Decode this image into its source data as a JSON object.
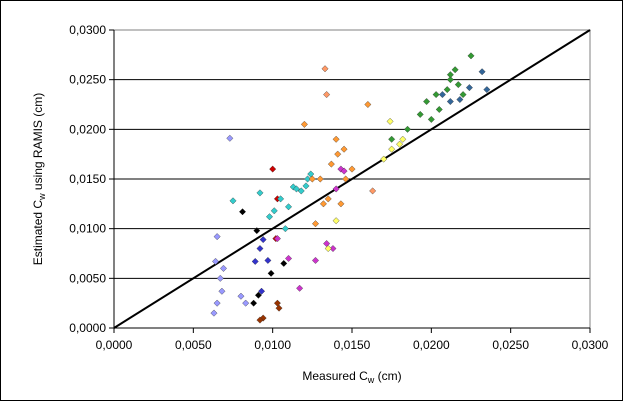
{
  "chart_data": {
    "type": "scatter",
    "title": "",
    "xlabel": {
      "main": "Measured C",
      "sub": "w",
      "unit": " (cm)"
    },
    "ylabel": {
      "main": "Estimated C",
      "sub": "w",
      "suffix": " using RAMIS (cm)"
    },
    "xlim": [
      0,
      0.03
    ],
    "ylim": [
      0,
      0.03
    ],
    "xticks": [
      "0,0000",
      "0,0050",
      "0,0100",
      "0,0150",
      "0,0200",
      "0,0250",
      "0,0300"
    ],
    "yticks": [
      "0,0000",
      "0,0050",
      "0,0100",
      "0,0150",
      "0,0200",
      "0,0250",
      "0,0300"
    ],
    "grid": "horizontal",
    "marker": "diamond",
    "reference_line": {
      "x": [
        0,
        0.03
      ],
      "y": [
        0,
        0.03
      ],
      "color": "#000000"
    },
    "series": [
      {
        "color": "#3333cc",
        "x": [
          0.0089,
          0.0092,
          0.0094,
          0.0097,
          0.0093
        ],
        "y": [
          0.0067,
          0.008,
          0.0089,
          0.0068,
          0.0037
        ]
      },
      {
        "color": "#000000",
        "x": [
          0.009,
          0.0099,
          0.0091,
          0.0088,
          0.0107,
          0.0081
        ],
        "y": [
          0.0098,
          0.0055,
          0.0033,
          0.0025,
          0.0065,
          0.0117
        ]
      },
      {
        "color": "#993300",
        "x": [
          0.0094,
          0.0092,
          0.0103,
          0.0104
        ],
        "y": [
          0.001,
          0.0008,
          0.0025,
          0.002
        ]
      },
      {
        "color": "#cc0000",
        "x": [
          0.01,
          0.0102,
          0.0103
        ],
        "y": [
          0.016,
          0.009,
          0.013
        ]
      },
      {
        "color": "#33cccc",
        "x": [
          0.0075,
          0.0092,
          0.0098,
          0.0101,
          0.0105,
          0.011,
          0.0113,
          0.0118,
          0.0121,
          0.0122,
          0.0124,
          0.0115,
          0.0108
        ],
        "y": [
          0.0128,
          0.0136,
          0.0112,
          0.0118,
          0.013,
          0.0122,
          0.0142,
          0.0138,
          0.0143,
          0.015,
          0.0155,
          0.014,
          0.01
        ]
      },
      {
        "color": "#9999ff",
        "x": [
          0.0064,
          0.0065,
          0.0067,
          0.0069,
          0.0073,
          0.0068,
          0.0065,
          0.0063,
          0.008,
          0.0083
        ],
        "y": [
          0.0067,
          0.0092,
          0.005,
          0.006,
          0.0191,
          0.0037,
          0.0025,
          0.0015,
          0.0032,
          0.0025
        ]
      },
      {
        "color": "#cc33cc",
        "x": [
          0.0103,
          0.011,
          0.0117,
          0.0127,
          0.0138,
          0.014,
          0.0143,
          0.0134,
          0.0145
        ],
        "y": [
          0.009,
          0.007,
          0.004,
          0.0068,
          0.008,
          0.014,
          0.016,
          0.0085,
          0.0158
        ]
      },
      {
        "color": "#ff9933",
        "x": [
          0.012,
          0.0125,
          0.013,
          0.0137,
          0.014,
          0.0141,
          0.0145,
          0.015,
          0.0135,
          0.0132,
          0.0146,
          0.0143,
          0.0127,
          0.016
        ],
        "y": [
          0.0205,
          0.015,
          0.015,
          0.0165,
          0.019,
          0.0175,
          0.018,
          0.016,
          0.013,
          0.0125,
          0.015,
          0.0125,
          0.0105,
          0.0225
        ]
      },
      {
        "color": "#ff9966",
        "x": [
          0.0133,
          0.0134,
          0.0163
        ],
        "y": [
          0.0261,
          0.0235,
          0.0138
        ]
      },
      {
        "color": "#ffff66",
        "x": [
          0.0135,
          0.014,
          0.017,
          0.0175,
          0.018,
          0.0174,
          0.0182
        ],
        "y": [
          0.008,
          0.0108,
          0.017,
          0.018,
          0.0185,
          0.0208,
          0.019
        ]
      },
      {
        "color": "#339933",
        "x": [
          0.0175,
          0.0185,
          0.0193,
          0.0197,
          0.02,
          0.0203,
          0.0205,
          0.021,
          0.0212,
          0.0215,
          0.0217,
          0.022,
          0.0225,
          0.0212
        ],
        "y": [
          0.019,
          0.02,
          0.0215,
          0.0228,
          0.021,
          0.0235,
          0.022,
          0.024,
          0.025,
          0.026,
          0.0245,
          0.0235,
          0.0274,
          0.0255
        ]
      },
      {
        "color": "#336699",
        "x": [
          0.0207,
          0.0212,
          0.0218,
          0.0224,
          0.0232,
          0.0235
        ],
        "y": [
          0.0235,
          0.0228,
          0.023,
          0.0242,
          0.0258,
          0.024
        ]
      }
    ]
  }
}
